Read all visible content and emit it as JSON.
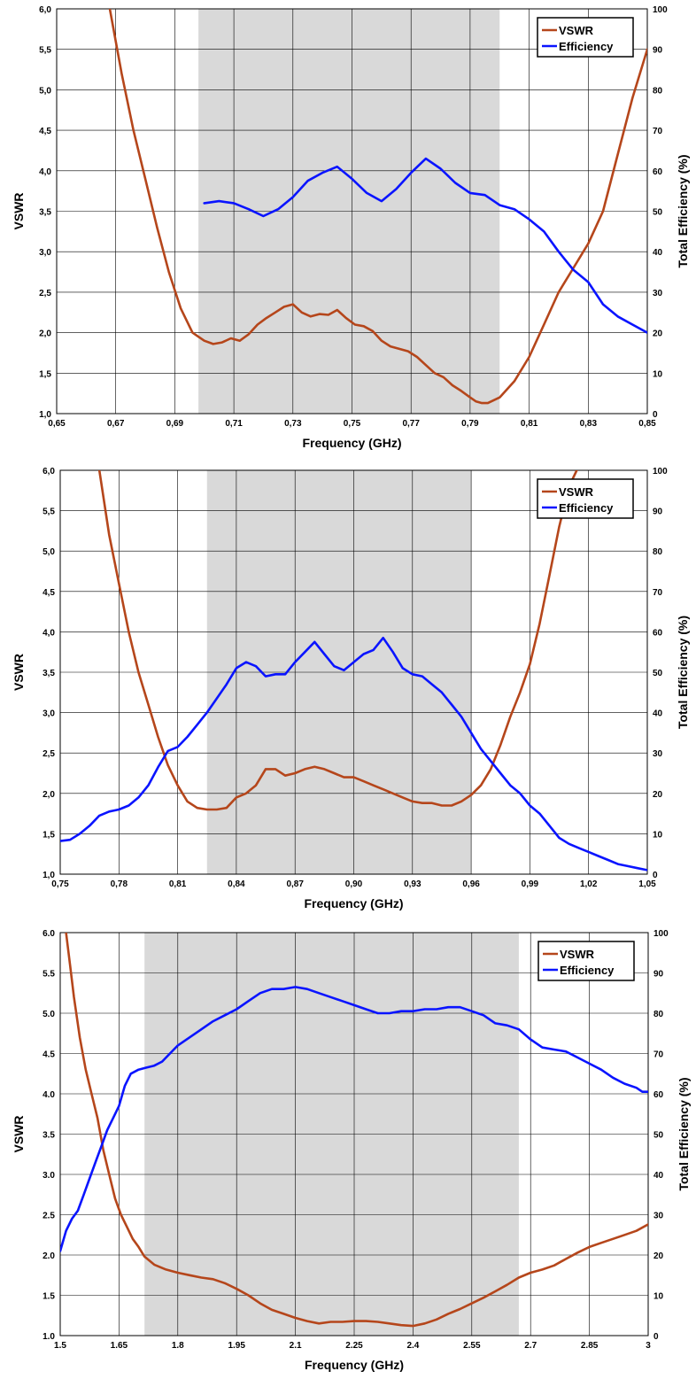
{
  "colors": {
    "vswr": "#b5461b",
    "efficiency": "#0a14ff",
    "band": "#d9d9d9",
    "grid": "#000000"
  },
  "chart_data": [
    {
      "type": "line",
      "xlabel": "Frequency (GHz)",
      "ylabel": "VSWR",
      "y2label": "Total Efficiency (%)",
      "xlim": [
        0.65,
        0.85
      ],
      "ylim": [
        1.0,
        6.0
      ],
      "y2lim": [
        0,
        100
      ],
      "x_ticks": [
        "0,65",
        "0,67",
        "0,69",
        "0,71",
        "0,73",
        "0,75",
        "0,77",
        "0,79",
        "0,81",
        "0,83",
        "0,85"
      ],
      "y_ticks": [
        "1,0",
        "1,5",
        "2,0",
        "2,5",
        "3,0",
        "3,5",
        "4,0",
        "4,5",
        "5,0",
        "5,5",
        "6,0"
      ],
      "y2_ticks": [
        "0",
        "10",
        "20",
        "30",
        "40",
        "50",
        "60",
        "70",
        "80",
        "90",
        "100"
      ],
      "shaded_band": [
        0.698,
        0.8
      ],
      "grid": true,
      "legend_position": "top-right",
      "series": [
        {
          "name": "VSWR",
          "axis": "left",
          "x": [
            0.668,
            0.672,
            0.676,
            0.68,
            0.684,
            0.688,
            0.692,
            0.696,
            0.698,
            0.7,
            0.703,
            0.706,
            0.709,
            0.712,
            0.715,
            0.718,
            0.721,
            0.724,
            0.727,
            0.73,
            0.733,
            0.736,
            0.739,
            0.742,
            0.745,
            0.748,
            0.751,
            0.754,
            0.757,
            0.76,
            0.763,
            0.766,
            0.769,
            0.772,
            0.775,
            0.778,
            0.781,
            0.784,
            0.787,
            0.79,
            0.792,
            0.794,
            0.796,
            0.8,
            0.805,
            0.81,
            0.815,
            0.82,
            0.825,
            0.83,
            0.835,
            0.84,
            0.845,
            0.85
          ],
          "values": [
            6.0,
            5.2,
            4.5,
            3.9,
            3.3,
            2.75,
            2.3,
            2.0,
            1.95,
            1.9,
            1.86,
            1.88,
            1.93,
            1.9,
            1.98,
            2.1,
            2.18,
            2.25,
            2.32,
            2.35,
            2.25,
            2.2,
            2.23,
            2.22,
            2.28,
            2.18,
            2.1,
            2.08,
            2.02,
            1.9,
            1.83,
            1.8,
            1.77,
            1.7,
            1.6,
            1.5,
            1.45,
            1.35,
            1.28,
            1.2,
            1.15,
            1.13,
            1.13,
            1.2,
            1.4,
            1.7,
            2.1,
            2.5,
            2.8,
            3.1,
            3.5,
            4.2,
            4.9,
            5.5
          ]
        },
        {
          "name": "Efficiency",
          "axis": "right",
          "x": [
            0.7,
            0.705,
            0.71,
            0.715,
            0.72,
            0.725,
            0.73,
            0.735,
            0.74,
            0.745,
            0.75,
            0.755,
            0.76,
            0.765,
            0.77,
            0.775,
            0.78,
            0.785,
            0.79,
            0.795,
            0.8,
            0.805,
            0.81,
            0.815,
            0.82,
            0.825,
            0.83,
            0.835,
            0.84,
            0.845,
            0.85
          ],
          "values": [
            52,
            52.5,
            52,
            50.5,
            48.8,
            50.5,
            53.5,
            57.5,
            59.5,
            61,
            58,
            54.5,
            52.5,
            55.5,
            59.5,
            63,
            60.5,
            57,
            54.5,
            54,
            51.5,
            50.5,
            48,
            45,
            40,
            35.5,
            32.5,
            27,
            24,
            22,
            20
          ]
        }
      ]
    },
    {
      "type": "line",
      "xlabel": "Frequency (GHz)",
      "ylabel": "VSWR",
      "y2label": "Total Efficiency (%)",
      "xlim": [
        0.75,
        1.05
      ],
      "ylim": [
        1.0,
        6.0
      ],
      "y2lim": [
        0,
        100
      ],
      "x_ticks": [
        "0,75",
        "0,78",
        "0,81",
        "0,84",
        "0,87",
        "0,90",
        "0,93",
        "0,96",
        "0,99",
        "1,02",
        "1,05"
      ],
      "y_ticks": [
        "1,0",
        "1,5",
        "2,0",
        "2,5",
        "3,0",
        "3,5",
        "4,0",
        "4,5",
        "5,0",
        "5,5",
        "6,0"
      ],
      "y2_ticks": [
        "0",
        "10",
        "20",
        "30",
        "40",
        "50",
        "60",
        "70",
        "80",
        "90",
        "100"
      ],
      "shaded_band": [
        0.825,
        0.96
      ],
      "grid": true,
      "legend_position": "top-right",
      "series": [
        {
          "name": "VSWR",
          "axis": "left",
          "x": [
            0.77,
            0.775,
            0.78,
            0.785,
            0.79,
            0.795,
            0.8,
            0.805,
            0.81,
            0.815,
            0.82,
            0.825,
            0.83,
            0.835,
            0.84,
            0.845,
            0.85,
            0.855,
            0.86,
            0.865,
            0.87,
            0.875,
            0.88,
            0.885,
            0.89,
            0.895,
            0.9,
            0.905,
            0.91,
            0.915,
            0.92,
            0.925,
            0.93,
            0.935,
            0.94,
            0.945,
            0.95,
            0.955,
            0.96,
            0.965,
            0.97,
            0.975,
            0.98,
            0.985,
            0.99,
            0.995,
            1.0,
            1.005,
            1.01,
            1.015
          ],
          "values": [
            6.0,
            5.2,
            4.6,
            4.0,
            3.5,
            3.1,
            2.7,
            2.35,
            2.1,
            1.9,
            1.82,
            1.8,
            1.8,
            1.82,
            1.95,
            2.0,
            2.1,
            2.3,
            2.3,
            2.22,
            2.25,
            2.3,
            2.33,
            2.3,
            2.25,
            2.2,
            2.2,
            2.15,
            2.1,
            2.05,
            2.0,
            1.95,
            1.9,
            1.88,
            1.88,
            1.85,
            1.85,
            1.9,
            1.98,
            2.1,
            2.3,
            2.6,
            2.95,
            3.25,
            3.6,
            4.1,
            4.7,
            5.3,
            5.8,
            6.05
          ]
        },
        {
          "name": "Efficiency",
          "axis": "right",
          "x": [
            0.75,
            0.755,
            0.76,
            0.765,
            0.77,
            0.775,
            0.78,
            0.785,
            0.79,
            0.795,
            0.8,
            0.805,
            0.81,
            0.815,
            0.82,
            0.825,
            0.83,
            0.835,
            0.84,
            0.845,
            0.85,
            0.855,
            0.86,
            0.865,
            0.87,
            0.875,
            0.88,
            0.885,
            0.89,
            0.895,
            0.9,
            0.905,
            0.91,
            0.915,
            0.92,
            0.925,
            0.93,
            0.935,
            0.94,
            0.945,
            0.95,
            0.955,
            0.96,
            0.965,
            0.97,
            0.975,
            0.98,
            0.985,
            0.99,
            0.995,
            1.0,
            1.005,
            1.01,
            1.015,
            1.02,
            1.025,
            1.03,
            1.035,
            1.04,
            1.045,
            1.05
          ],
          "values": [
            8.2,
            8.5,
            10,
            12,
            14.5,
            15.5,
            16,
            17,
            19,
            22,
            26.5,
            30.5,
            31.5,
            34,
            37,
            40,
            43.5,
            47,
            51,
            52.5,
            51.5,
            49,
            49.5,
            49.5,
            52.5,
            55,
            57.5,
            54.5,
            51.5,
            50.5,
            52.5,
            54.5,
            55.5,
            58.5,
            55,
            51,
            49.5,
            49,
            47,
            45,
            42,
            39,
            35,
            31,
            28,
            25,
            22,
            20,
            17,
            15,
            12,
            9,
            7.5,
            6.5,
            5.5,
            4.5,
            3.5,
            2.5,
            2,
            1.5,
            1
          ]
        }
      ]
    },
    {
      "type": "line",
      "xlabel": "Frequency (GHz)",
      "ylabel": "VSWR",
      "y2label": "Total Efficiency (%)",
      "xlim": [
        1.5,
        3.0
      ],
      "ylim": [
        1.0,
        6.0
      ],
      "y2lim": [
        0,
        100
      ],
      "x_ticks": [
        "1.5",
        "1.65",
        "1.8",
        "1.95",
        "2.1",
        "2.25",
        "2.4",
        "2.55",
        "2.7",
        "2.85",
        "3"
      ],
      "y_ticks": [
        "1.0",
        "1.5",
        "2.0",
        "2.5",
        "3.0",
        "3.5",
        "4.0",
        "4.5",
        "5.0",
        "5.5",
        "6.0"
      ],
      "y2_ticks": [
        "0",
        "10",
        "20",
        "30",
        "40",
        "50",
        "60",
        "70",
        "80",
        "90",
        "100"
      ],
      "shaded_band": [
        1.715,
        2.67
      ],
      "grid": true,
      "legend_position": "top-right",
      "series": [
        {
          "name": "VSWR",
          "axis": "left",
          "x": [
            1.515,
            1.525,
            1.535,
            1.55,
            1.565,
            1.58,
            1.595,
            1.61,
            1.625,
            1.64,
            1.655,
            1.67,
            1.685,
            1.7,
            1.715,
            1.74,
            1.77,
            1.8,
            1.83,
            1.86,
            1.89,
            1.92,
            1.95,
            1.98,
            2.01,
            2.04,
            2.07,
            2.1,
            2.13,
            2.16,
            2.19,
            2.22,
            2.25,
            2.28,
            2.31,
            2.34,
            2.37,
            2.4,
            2.43,
            2.46,
            2.49,
            2.52,
            2.55,
            2.58,
            2.61,
            2.64,
            2.67,
            2.7,
            2.73,
            2.76,
            2.79,
            2.82,
            2.85,
            2.88,
            2.91,
            2.94,
            2.97,
            3.0
          ],
          "values": [
            6.0,
            5.6,
            5.2,
            4.7,
            4.3,
            4.0,
            3.7,
            3.3,
            3.0,
            2.7,
            2.5,
            2.35,
            2.2,
            2.1,
            1.98,
            1.88,
            1.82,
            1.78,
            1.75,
            1.72,
            1.7,
            1.65,
            1.58,
            1.5,
            1.4,
            1.32,
            1.27,
            1.22,
            1.18,
            1.15,
            1.17,
            1.17,
            1.18,
            1.18,
            1.17,
            1.15,
            1.13,
            1.12,
            1.15,
            1.2,
            1.27,
            1.33,
            1.4,
            1.47,
            1.55,
            1.63,
            1.72,
            1.78,
            1.82,
            1.87,
            1.95,
            2.03,
            2.1,
            2.15,
            2.2,
            2.25,
            2.3,
            2.38
          ]
        },
        {
          "name": "Efficiency",
          "axis": "right",
          "x": [
            1.5,
            1.515,
            1.53,
            1.545,
            1.56,
            1.575,
            1.59,
            1.605,
            1.62,
            1.635,
            1.65,
            1.665,
            1.68,
            1.7,
            1.72,
            1.74,
            1.76,
            1.78,
            1.8,
            1.83,
            1.86,
            1.89,
            1.92,
            1.95,
            1.98,
            2.01,
            2.04,
            2.07,
            2.1,
            2.13,
            2.16,
            2.19,
            2.22,
            2.25,
            2.28,
            2.31,
            2.34,
            2.37,
            2.4,
            2.43,
            2.46,
            2.49,
            2.52,
            2.55,
            2.58,
            2.61,
            2.64,
            2.67,
            2.7,
            2.73,
            2.76,
            2.79,
            2.82,
            2.85,
            2.88,
            2.91,
            2.94,
            2.97,
            2.985,
            3.0
          ],
          "values": [
            21,
            26,
            29,
            31,
            35,
            39,
            43,
            47,
            51,
            54,
            57,
            62,
            65,
            66,
            66.5,
            67,
            68,
            70,
            72,
            74,
            76,
            78,
            79.5,
            81,
            83,
            85,
            86,
            86,
            86.5,
            86,
            85,
            84,
            83,
            82,
            81,
            80,
            80,
            80.5,
            80.5,
            81,
            81,
            81.5,
            81.5,
            80.5,
            79.5,
            77.5,
            77,
            76,
            73.5,
            71.5,
            71,
            70.5,
            69,
            67.5,
            66,
            64,
            62.5,
            61.5,
            60.5,
            60.5
          ]
        }
      ]
    }
  ]
}
